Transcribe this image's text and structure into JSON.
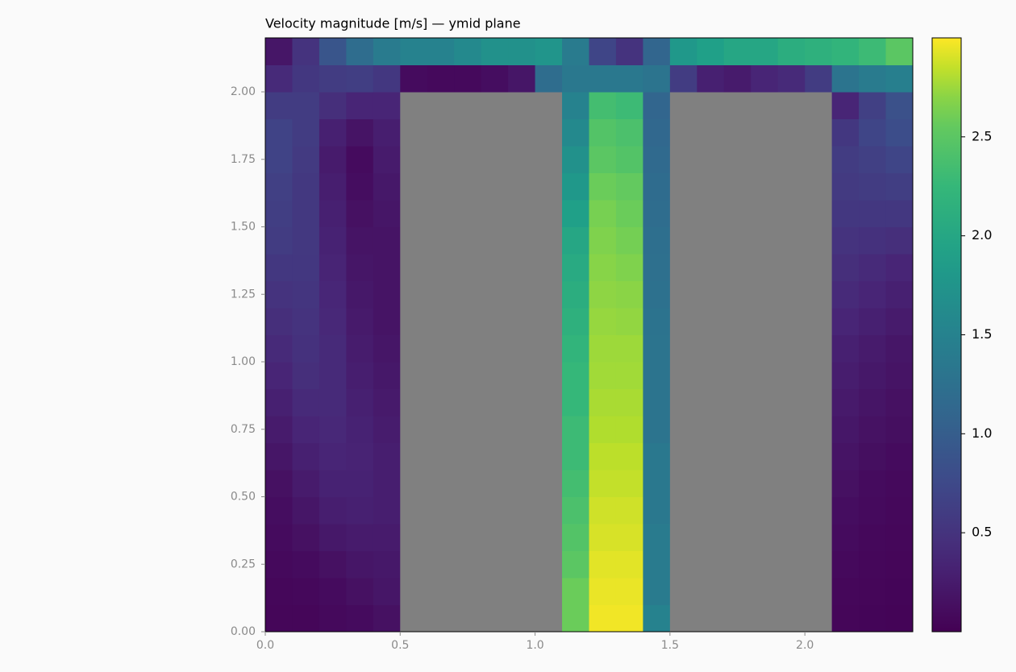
{
  "chart_data": {
    "type": "heatmap",
    "title": "Velocity magnitude [m/s] — ymid plane",
    "colormap": "viridis",
    "mask_color": "#808080",
    "xlim": [
      0,
      2.4
    ],
    "ylim": [
      0,
      2.2
    ],
    "clim": [
      0,
      3.0
    ],
    "xticks": [
      {
        "value": 0,
        "label": "0.0"
      },
      0.5,
      {
        "value": 1,
        "label": "1.0"
      },
      1.5,
      {
        "value": 2,
        "label": "2.0"
      }
    ],
    "yticks": [
      {
        "value": 0,
        "label": "0.00"
      },
      0.25,
      {
        "value": 0.5,
        "label": "0.50"
      },
      0.75,
      {
        "value": 1,
        "label": "1.00"
      },
      1.25,
      {
        "value": 1.5,
        "label": "1.50"
      },
      1.75,
      {
        "value": 2,
        "label": "2.00"
      }
    ],
    "cticks": [
      0.5,
      {
        "value": 1,
        "label": "1.0"
      },
      1.5,
      {
        "value": 2,
        "label": "2.0"
      },
      2.5
    ],
    "values": [
      [
        0.05,
        0.05,
        0.08,
        0.1,
        0.15,
        null,
        null,
        null,
        null,
        null,
        null,
        2.6,
        2.97,
        2.97,
        1.5,
        null,
        null,
        null,
        null,
        null,
        null,
        0.05,
        0.04,
        0.03
      ],
      [
        0.06,
        0.07,
        0.1,
        0.15,
        0.2,
        null,
        null,
        null,
        null,
        null,
        null,
        2.6,
        2.95,
        2.95,
        1.4,
        null,
        null,
        null,
        null,
        null,
        null,
        0.06,
        0.05,
        0.04
      ],
      [
        0.08,
        0.1,
        0.15,
        0.2,
        0.22,
        null,
        null,
        null,
        null,
        null,
        null,
        2.5,
        2.93,
        2.93,
        1.4,
        null,
        null,
        null,
        null,
        null,
        null,
        0.08,
        0.06,
        0.05
      ],
      [
        0.1,
        0.15,
        0.22,
        0.25,
        0.25,
        null,
        null,
        null,
        null,
        null,
        null,
        2.45,
        2.9,
        2.9,
        1.4,
        null,
        null,
        null,
        null,
        null,
        null,
        0.1,
        0.07,
        0.06
      ],
      [
        0.12,
        0.2,
        0.28,
        0.3,
        0.28,
        null,
        null,
        null,
        null,
        null,
        null,
        2.4,
        2.88,
        2.88,
        1.35,
        null,
        null,
        null,
        null,
        null,
        null,
        0.12,
        0.09,
        0.07
      ],
      [
        0.15,
        0.25,
        0.32,
        0.32,
        0.28,
        null,
        null,
        null,
        null,
        null,
        null,
        2.35,
        2.85,
        2.85,
        1.35,
        null,
        null,
        null,
        null,
        null,
        null,
        0.15,
        0.1,
        0.08
      ],
      [
        0.2,
        0.3,
        0.35,
        0.33,
        0.28,
        null,
        null,
        null,
        null,
        null,
        null,
        2.3,
        2.83,
        2.83,
        1.35,
        null,
        null,
        null,
        null,
        null,
        null,
        0.18,
        0.13,
        0.1
      ],
      [
        0.25,
        0.35,
        0.38,
        0.32,
        0.26,
        null,
        null,
        null,
        null,
        null,
        null,
        2.3,
        2.8,
        2.8,
        1.3,
        null,
        null,
        null,
        null,
        null,
        null,
        0.21,
        0.16,
        0.13
      ],
      [
        0.3,
        0.4,
        0.4,
        0.3,
        0.24,
        null,
        null,
        null,
        null,
        null,
        null,
        2.25,
        2.78,
        2.78,
        1.3,
        null,
        null,
        null,
        null,
        null,
        null,
        0.24,
        0.19,
        0.15
      ],
      [
        0.35,
        0.45,
        0.4,
        0.28,
        0.22,
        null,
        null,
        null,
        null,
        null,
        null,
        2.25,
        2.76,
        2.76,
        1.3,
        null,
        null,
        null,
        null,
        null,
        null,
        0.27,
        0.22,
        0.18
      ],
      [
        0.4,
        0.48,
        0.4,
        0.26,
        0.2,
        null,
        null,
        null,
        null,
        null,
        null,
        2.2,
        2.75,
        2.75,
        1.3,
        null,
        null,
        null,
        null,
        null,
        null,
        0.3,
        0.25,
        0.2
      ],
      [
        0.45,
        0.5,
        0.38,
        0.24,
        0.18,
        null,
        null,
        null,
        null,
        null,
        null,
        2.15,
        2.73,
        2.72,
        1.28,
        null,
        null,
        null,
        null,
        null,
        null,
        0.35,
        0.3,
        0.25
      ],
      [
        0.5,
        0.52,
        0.36,
        0.22,
        0.18,
        null,
        null,
        null,
        null,
        null,
        null,
        2.1,
        2.71,
        2.7,
        1.26,
        null,
        null,
        null,
        null,
        null,
        null,
        0.4,
        0.35,
        0.3
      ],
      [
        0.55,
        0.55,
        0.34,
        0.2,
        0.18,
        null,
        null,
        null,
        null,
        null,
        null,
        2.05,
        2.69,
        2.67,
        1.24,
        null,
        null,
        null,
        null,
        null,
        null,
        0.45,
        0.4,
        0.35
      ],
      [
        0.6,
        0.56,
        0.32,
        0.18,
        0.18,
        null,
        null,
        null,
        null,
        null,
        null,
        2.0,
        2.67,
        2.64,
        1.22,
        null,
        null,
        null,
        null,
        null,
        null,
        0.5,
        0.48,
        0.45
      ],
      [
        0.62,
        0.56,
        0.3,
        0.15,
        0.2,
        null,
        null,
        null,
        null,
        null,
        null,
        1.9,
        2.65,
        2.6,
        1.2,
        null,
        null,
        null,
        null,
        null,
        null,
        0.55,
        0.55,
        0.55
      ],
      [
        0.65,
        0.56,
        0.28,
        0.12,
        0.22,
        null,
        null,
        null,
        null,
        null,
        null,
        1.8,
        2.6,
        2.55,
        1.18,
        null,
        null,
        null,
        null,
        null,
        null,
        0.58,
        0.6,
        0.62
      ],
      [
        0.68,
        0.58,
        0.25,
        0.1,
        0.25,
        null,
        null,
        null,
        null,
        null,
        null,
        1.7,
        2.5,
        2.45,
        1.15,
        null,
        null,
        null,
        null,
        null,
        null,
        0.6,
        0.65,
        0.7
      ],
      [
        0.68,
        0.6,
        0.3,
        0.18,
        0.28,
        null,
        null,
        null,
        null,
        null,
        null,
        1.6,
        2.45,
        2.4,
        1.12,
        null,
        null,
        null,
        null,
        null,
        null,
        0.55,
        0.7,
        0.8
      ],
      [
        0.6,
        0.6,
        0.45,
        0.35,
        0.35,
        null,
        null,
        null,
        null,
        null,
        null,
        1.5,
        2.35,
        2.3,
        1.1,
        null,
        null,
        null,
        null,
        null,
        null,
        0.35,
        0.65,
        0.85
      ],
      [
        0.4,
        0.55,
        0.6,
        0.62,
        0.55,
        0.1,
        0.08,
        0.08,
        0.12,
        0.2,
        1.2,
        1.35,
        1.35,
        1.35,
        1.3,
        0.6,
        0.3,
        0.25,
        0.35,
        0.4,
        0.6,
        1.3,
        1.4,
        1.45
      ],
      [
        0.2,
        0.5,
        0.9,
        1.2,
        1.4,
        1.5,
        1.5,
        1.6,
        1.7,
        1.7,
        1.75,
        1.4,
        0.7,
        0.5,
        1.1,
        1.8,
        1.9,
        2.0,
        2.0,
        2.1,
        2.15,
        2.2,
        2.3,
        2.5
      ]
    ]
  }
}
